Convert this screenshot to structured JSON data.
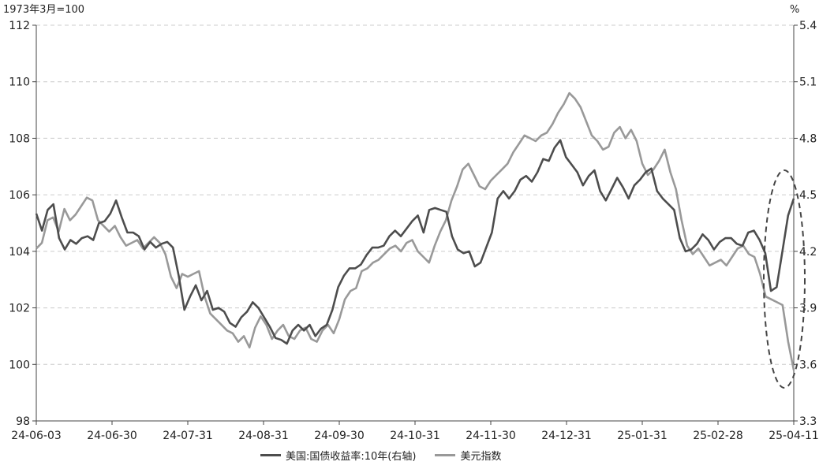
{
  "chart_data": {
    "type": "line",
    "title": "",
    "left_axis": {
      "unit_label": "1973年3月=100",
      "ylim": [
        98,
        112
      ],
      "ticks": [
        "112",
        "110",
        "108",
        "106",
        "104",
        "102",
        "100",
        "98"
      ]
    },
    "right_axis": {
      "unit_label": "%",
      "ylim": [
        3.3,
        5.4
      ],
      "ticks": [
        "5.4",
        "5.1",
        "4.8",
        "4.5",
        "4.2",
        "3.9",
        "3.6",
        "3.3"
      ]
    },
    "x_ticks": [
      "24-06-03",
      "24-06-30",
      "24-07-31",
      "24-08-31",
      "24-09-30",
      "24-10-31",
      "24-11-30",
      "24-12-31",
      "25-01-31",
      "25-02-28",
      "25-04-11"
    ],
    "grid": "horizontal dashed",
    "legend_position": "bottom",
    "series": [
      {
        "name": "美国:国债收益率:10年(右轴)",
        "axis": "right",
        "color": "#4d4d4d",
        "values": [
          4.4,
          4.31,
          4.42,
          4.45,
          4.27,
          4.21,
          4.26,
          4.24,
          4.27,
          4.28,
          4.26,
          4.35,
          4.36,
          4.4,
          4.47,
          4.38,
          4.3,
          4.3,
          4.28,
          4.21,
          4.25,
          4.22,
          4.24,
          4.25,
          4.22,
          4.07,
          3.89,
          3.96,
          4.02,
          3.94,
          3.99,
          3.89,
          3.9,
          3.88,
          3.82,
          3.8,
          3.85,
          3.88,
          3.93,
          3.9,
          3.85,
          3.8,
          3.74,
          3.73,
          3.71,
          3.78,
          3.81,
          3.78,
          3.81,
          3.75,
          3.79,
          3.81,
          3.89,
          4.01,
          4.07,
          4.11,
          4.11,
          4.13,
          4.18,
          4.22,
          4.22,
          4.23,
          4.28,
          4.31,
          4.28,
          4.32,
          4.36,
          4.39,
          4.3,
          4.42,
          4.43,
          4.42,
          4.41,
          4.28,
          4.21,
          4.19,
          4.2,
          4.12,
          4.14,
          4.22,
          4.3,
          4.48,
          4.52,
          4.48,
          4.52,
          4.58,
          4.6,
          4.57,
          4.62,
          4.69,
          4.68,
          4.75,
          4.79,
          4.7,
          4.66,
          4.62,
          4.55,
          4.6,
          4.63,
          4.52,
          4.47,
          4.53,
          4.59,
          4.54,
          4.48,
          4.55,
          4.58,
          4.62,
          4.64,
          4.52,
          4.48,
          4.45,
          4.42,
          4.27,
          4.2,
          4.21,
          4.24,
          4.29,
          4.26,
          4.21,
          4.25,
          4.27,
          4.27,
          4.24,
          4.23,
          4.3,
          4.31,
          4.26,
          4.19,
          3.99,
          4.01,
          4.2,
          4.39,
          4.48
        ]
      },
      {
        "name": "美元指数",
        "axis": "left",
        "color": "#999999",
        "values": [
          104.1,
          104.3,
          105.1,
          105.2,
          104.7,
          105.5,
          105.1,
          105.3,
          105.6,
          105.9,
          105.8,
          105.1,
          104.9,
          104.7,
          104.9,
          104.5,
          104.2,
          104.3,
          104.4,
          104.1,
          104.3,
          104.5,
          104.3,
          103.9,
          103.1,
          102.7,
          103.2,
          103.1,
          103.2,
          103.3,
          102.4,
          101.8,
          101.6,
          101.4,
          101.2,
          101.1,
          100.8,
          101.0,
          100.6,
          101.3,
          101.7,
          101.4,
          100.9,
          101.2,
          101.4,
          101.0,
          100.9,
          101.2,
          101.3,
          100.9,
          100.8,
          101.2,
          101.4,
          101.1,
          101.6,
          102.3,
          102.6,
          102.7,
          103.3,
          103.4,
          103.6,
          103.7,
          103.9,
          104.1,
          104.2,
          104.0,
          104.3,
          104.4,
          104.0,
          103.8,
          103.6,
          104.2,
          104.7,
          105.1,
          105.8,
          106.3,
          106.9,
          107.1,
          106.7,
          106.3,
          106.2,
          106.5,
          106.7,
          106.9,
          107.1,
          107.5,
          107.8,
          108.1,
          108.0,
          107.9,
          108.1,
          108.2,
          108.5,
          108.9,
          109.2,
          109.6,
          109.4,
          109.1,
          108.6,
          108.1,
          107.9,
          107.6,
          107.7,
          108.2,
          108.4,
          108.0,
          108.3,
          107.9,
          107.1,
          106.7,
          106.9,
          107.2,
          107.6,
          106.8,
          106.2,
          105.1,
          104.2,
          103.9,
          104.1,
          103.8,
          103.5,
          103.6,
          103.7,
          103.5,
          103.8,
          104.1,
          104.2,
          103.9,
          103.8,
          103.2,
          102.4,
          102.3,
          102.2,
          102.1,
          100.8,
          99.8
        ]
      }
    ]
  },
  "annotation": {
    "shape": "dashed-ellipse",
    "target": "latest data (25-04-11)"
  }
}
